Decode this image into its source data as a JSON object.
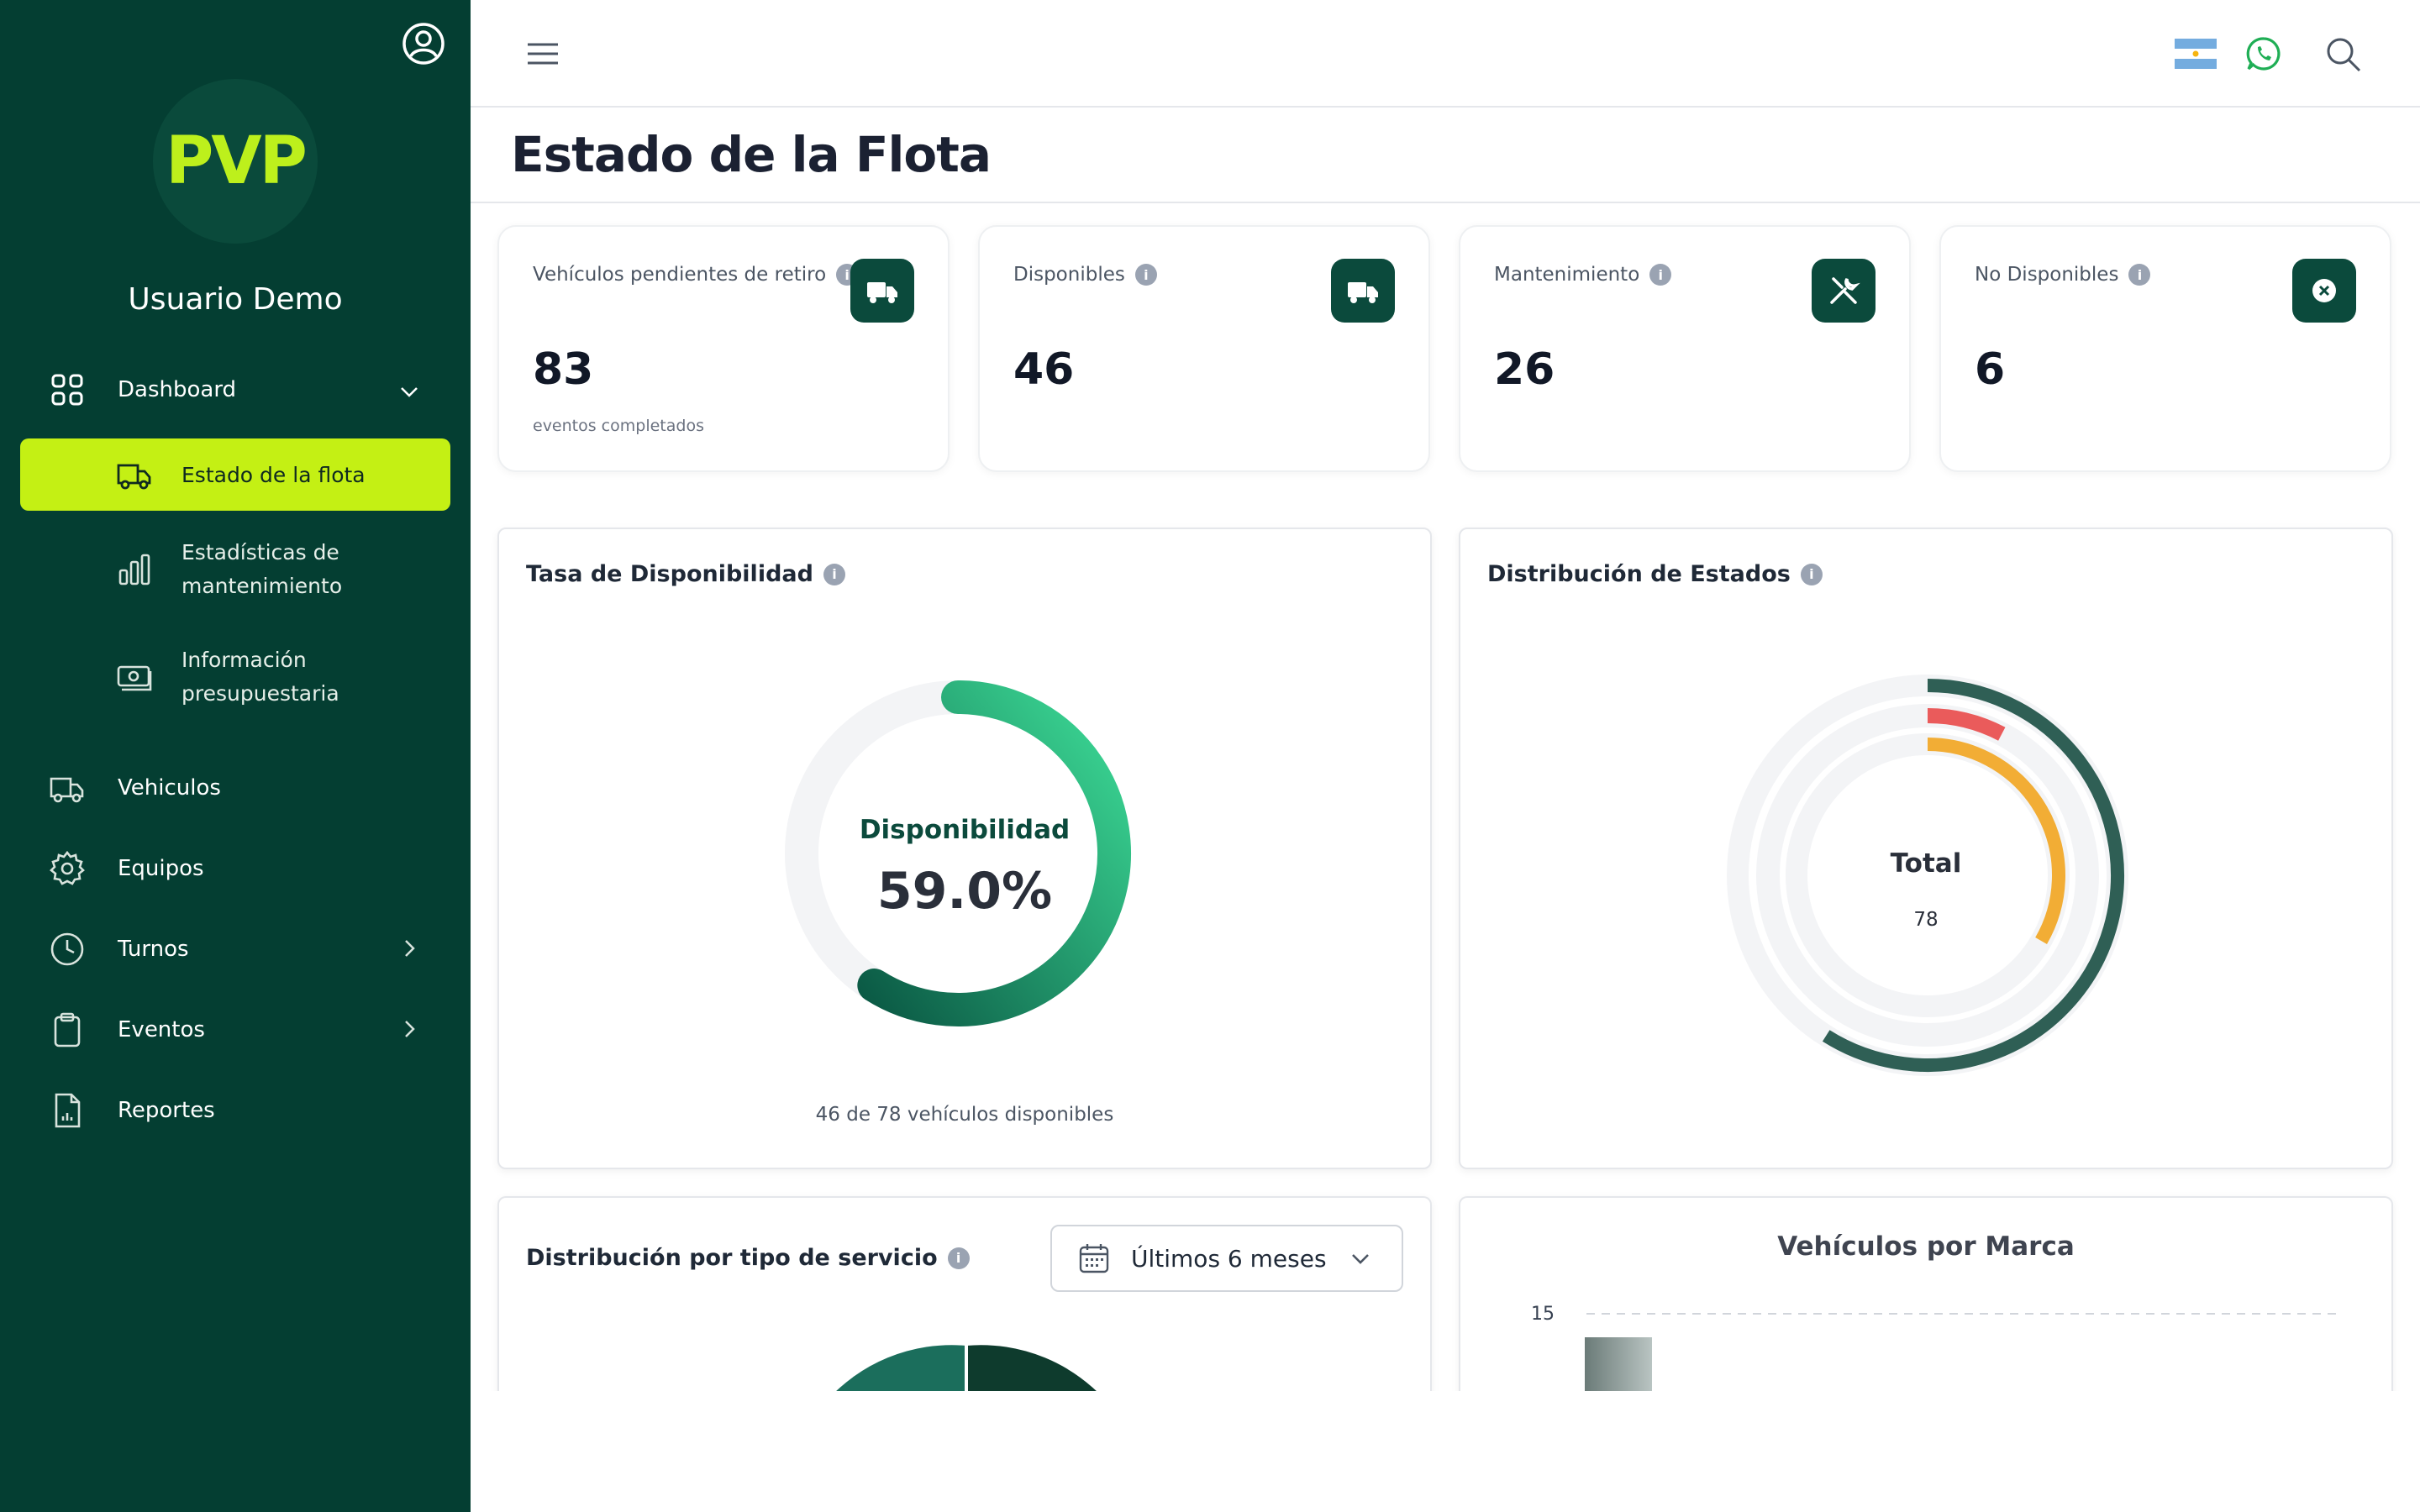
{
  "sidebar": {
    "logo": "PVP",
    "username": "Usuario Demo",
    "nav": [
      {
        "label": "Dashboard",
        "icon": "grid-icon"
      },
      {
        "label": "Vehiculos",
        "icon": "truck-icon"
      },
      {
        "label": "Equipos",
        "icon": "gear-icon"
      },
      {
        "label": "Turnos",
        "icon": "clock-icon"
      },
      {
        "label": "Eventos",
        "icon": "clipboard-icon"
      },
      {
        "label": "Reportes",
        "icon": "report-icon"
      }
    ],
    "dashboard_sub": [
      {
        "label": "Estado de la flota",
        "icon": "truck-icon",
        "active": true
      },
      {
        "label": "Estadísticas de",
        "label2": "mantenimiento",
        "icon": "bar-chart-icon"
      },
      {
        "label": "Información",
        "label2": "presupuestaria",
        "icon": "money-icon"
      }
    ]
  },
  "page": {
    "title": "Estado de la Flota"
  },
  "stats": [
    {
      "label": "Vehículos pendientes de retiro",
      "value": "83",
      "sub": "eventos completados",
      "icon": "truck-icon"
    },
    {
      "label": "Disponibles",
      "value": "46",
      "sub": "",
      "icon": "truck-icon"
    },
    {
      "label": "Mantenimiento",
      "value": "26",
      "sub": "",
      "icon": "tools-icon"
    },
    {
      "label": "No Disponibles",
      "value": "6",
      "sub": "",
      "icon": "x-circle-icon"
    }
  ],
  "availability": {
    "title": "Tasa de Disponibilidad",
    "center_label": "Disponibilidad",
    "center_value": "59.0%",
    "percent": 59.0,
    "footer": "46 de 78 vehículos disponibles"
  },
  "distribution": {
    "title": "Distribución de Estados",
    "center_label": "Total",
    "center_value": "78",
    "rings": [
      {
        "value": 46,
        "color": "#2f5f55"
      },
      {
        "value": 6,
        "color": "#ea5b5b"
      },
      {
        "value": 26,
        "color": "#f2ad35"
      }
    ]
  },
  "service": {
    "title": "Distribución por tipo de servicio",
    "filter": "Últimos 6 meses"
  },
  "brand": {
    "title": "Vehículos por Marca",
    "y_tick": "15"
  },
  "colors": {
    "sidebar": "#043e32",
    "accent": "#c4f014",
    "dark_green": "#0b4a3c"
  }
}
